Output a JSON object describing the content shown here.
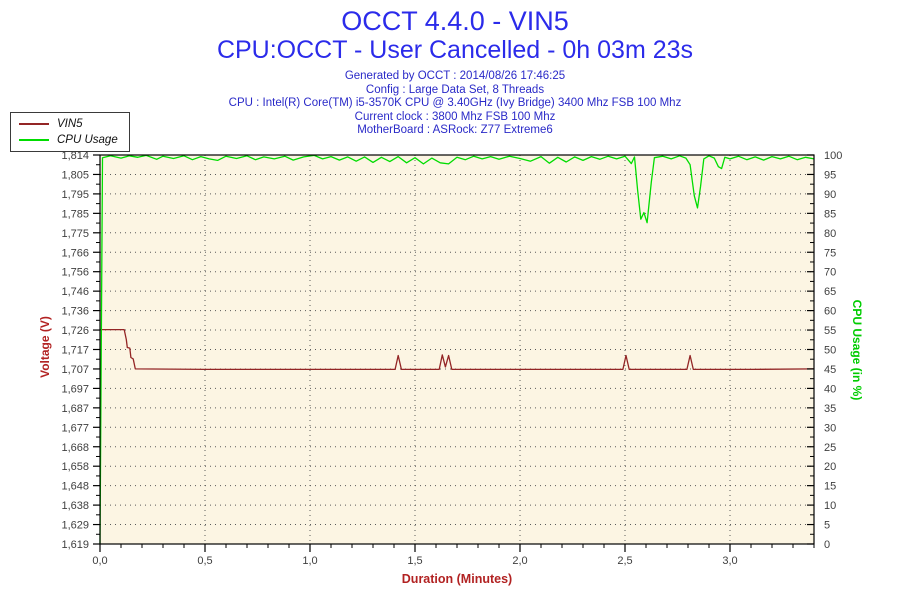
{
  "header": {
    "title_line1": "OCCT 4.4.0 - VIN5",
    "title_line2": "CPU:OCCT - User Cancelled - 0h 03m 23s",
    "info_lines": [
      "Generated by OCCT : 2014/08/26 17:46:25",
      "Config : Large Data Set, 8 Threads",
      "CPU : Intel(R) Core(TM) i5-3570K CPU @ 3.40GHz (Ivy Bridge) 3400 Mhz FSB 100 Mhz",
      "Current clock : 3800 Mhz FSB 100 Mhz",
      "MotherBoard : ASRock: Z77 Extreme6"
    ]
  },
  "legend": {
    "items": [
      {
        "label": "VIN5",
        "color": "#932525"
      },
      {
        "label": "CPU Usage",
        "color": "#00dd00"
      }
    ]
  },
  "colors": {
    "title_blue": "#2b2bea",
    "info_blue": "#2a2ac8",
    "plot_bg": "#fcf5e3",
    "grid": "#5a5a5a",
    "axis": "#000000",
    "tick_text": "#3f3f3f",
    "voltage_red": "#b22222",
    "cpu_green": "#00cc00",
    "vin5_line": "#932525",
    "cpu_line": "#00dd00"
  },
  "chart_data": {
    "type": "line",
    "title": "OCCT 4.4.0 - VIN5",
    "x_label": "Duration (Minutes)",
    "y_left_label": "Voltage (V)",
    "y_right_label": "CPU Usage (in %)",
    "x_range": [
      0,
      3.4
    ],
    "y_left_range": [
      1.619,
      1.814
    ],
    "y_right_range": [
      0,
      100
    ],
    "grid": "dotted",
    "legend_position": "top-left",
    "y_left_ticks": [
      "1,814",
      "1,805",
      "1,795",
      "1,785",
      "1,775",
      "1,766",
      "1,756",
      "1,746",
      "1,736",
      "1,726",
      "1,717",
      "1,707",
      "1,697",
      "1,687",
      "1,677",
      "1,668",
      "1,658",
      "1,648",
      "1,638",
      "1,629",
      "1,619"
    ],
    "y_right_ticks": [
      "100",
      "95",
      "90",
      "85",
      "80",
      "75",
      "70",
      "65",
      "60",
      "55",
      "50",
      "45",
      "40",
      "35",
      "30",
      "25",
      "20",
      "15",
      "10",
      "5",
      "0"
    ],
    "x_major_ticks": [
      {
        "v": 0.0,
        "label": "0,0"
      },
      {
        "v": 0.5,
        "label": "0,5"
      },
      {
        "v": 1.0,
        "label": "1,0"
      },
      {
        "v": 1.5,
        "label": "1,5"
      },
      {
        "v": 2.0,
        "label": "2,0"
      },
      {
        "v": 2.5,
        "label": "2,5"
      },
      {
        "v": 3.0,
        "label": "3,0"
      }
    ],
    "x_minor_step": 0.1,
    "series": [
      {
        "name": "VIN5",
        "axis": "left",
        "color": "#932525",
        "points": [
          [
            0,
            1.7265
          ],
          [
            0.115,
            1.7265
          ],
          [
            0.125,
            1.7215
          ],
          [
            0.13,
            1.7175
          ],
          [
            0.142,
            1.7172
          ],
          [
            0.147,
            1.7125
          ],
          [
            0.158,
            1.7118
          ],
          [
            0.168,
            1.7068
          ],
          [
            0.5,
            1.7065
          ],
          [
            1.0,
            1.7065
          ],
          [
            1.405,
            1.7065
          ],
          [
            1.42,
            1.7135
          ],
          [
            1.435,
            1.7065
          ],
          [
            1.615,
            1.7065
          ],
          [
            1.63,
            1.7138
          ],
          [
            1.645,
            1.7078
          ],
          [
            1.66,
            1.7135
          ],
          [
            1.675,
            1.7065
          ],
          [
            2.0,
            1.7065
          ],
          [
            2.49,
            1.7065
          ],
          [
            2.505,
            1.7135
          ],
          [
            2.52,
            1.7065
          ],
          [
            2.795,
            1.7065
          ],
          [
            2.81,
            1.7135
          ],
          [
            2.825,
            1.7065
          ],
          [
            3.1,
            1.7065
          ],
          [
            3.4,
            1.7068
          ]
        ]
      },
      {
        "name": "CPU Usage",
        "axis": "right",
        "color": "#00dd00",
        "points": [
          [
            0,
            0
          ],
          [
            0.012,
            99.3
          ],
          [
            0.05,
            99.8
          ],
          [
            0.1,
            99.2
          ],
          [
            0.14,
            99.8
          ],
          [
            0.18,
            99.4
          ],
          [
            0.22,
            99.9
          ],
          [
            0.27,
            98.9
          ],
          [
            0.3,
            99.7
          ],
          [
            0.35,
            99.1
          ],
          [
            0.4,
            99.8
          ],
          [
            0.44,
            98.8
          ],
          [
            0.48,
            99.6
          ],
          [
            0.52,
            99.0
          ],
          [
            0.56,
            98.6
          ],
          [
            0.6,
            99.7
          ],
          [
            0.65,
            99.1
          ],
          [
            0.7,
            99.8
          ],
          [
            0.74,
            98.8
          ],
          [
            0.78,
            99.5
          ],
          [
            0.83,
            99.0
          ],
          [
            0.88,
            99.7
          ],
          [
            0.92,
            98.7
          ],
          [
            0.97,
            99.5
          ],
          [
            1.02,
            99.9
          ],
          [
            1.06,
            99.0
          ],
          [
            1.1,
            99.6
          ],
          [
            1.14,
            98.7
          ],
          [
            1.18,
            99.5
          ],
          [
            1.22,
            98.4
          ],
          [
            1.26,
            99.5
          ],
          [
            1.3,
            98.1
          ],
          [
            1.34,
            99.4
          ],
          [
            1.38,
            98.3
          ],
          [
            1.42,
            99.6
          ],
          [
            1.46,
            98.0
          ],
          [
            1.5,
            99.3
          ],
          [
            1.54,
            97.7
          ],
          [
            1.58,
            99.2
          ],
          [
            1.62,
            98.0
          ],
          [
            1.66,
            97.7
          ],
          [
            1.7,
            99.4
          ],
          [
            1.74,
            98.8
          ],
          [
            1.78,
            99.7
          ],
          [
            1.82,
            99.0
          ],
          [
            1.86,
            99.6
          ],
          [
            1.9,
            98.9
          ],
          [
            1.95,
            99.7
          ],
          [
            2.0,
            99.1
          ],
          [
            2.05,
            98.4
          ],
          [
            2.1,
            99.6
          ],
          [
            2.14,
            97.9
          ],
          [
            2.18,
            99.4
          ],
          [
            2.22,
            98.2
          ],
          [
            2.26,
            99.5
          ],
          [
            2.3,
            98.6
          ],
          [
            2.34,
            99.6
          ],
          [
            2.38,
            98.9
          ],
          [
            2.42,
            99.7
          ],
          [
            2.46,
            99.0
          ],
          [
            2.5,
            99.7
          ],
          [
            2.53,
            97.8
          ],
          [
            2.545,
            99.5
          ],
          [
            2.56,
            91.0
          ],
          [
            2.575,
            83.5
          ],
          [
            2.59,
            85.2
          ],
          [
            2.605,
            82.6
          ],
          [
            2.625,
            93.0
          ],
          [
            2.64,
            99.3
          ],
          [
            2.68,
            99.7
          ],
          [
            2.72,
            99.0
          ],
          [
            2.76,
            99.8
          ],
          [
            2.79,
            99.2
          ],
          [
            2.81,
            97.5
          ],
          [
            2.83,
            89.5
          ],
          [
            2.845,
            86.4
          ],
          [
            2.86,
            92.0
          ],
          [
            2.875,
            99.0
          ],
          [
            2.9,
            99.8
          ],
          [
            2.925,
            99.2
          ],
          [
            2.945,
            97.0
          ],
          [
            2.96,
            96.5
          ],
          [
            2.975,
            99.4
          ],
          [
            3.0,
            99.0
          ],
          [
            3.04,
            99.7
          ],
          [
            3.08,
            98.8
          ],
          [
            3.12,
            99.5
          ],
          [
            3.16,
            98.7
          ],
          [
            3.2,
            99.6
          ],
          [
            3.24,
            99.0
          ],
          [
            3.28,
            99.7
          ],
          [
            3.32,
            98.8
          ],
          [
            3.36,
            99.4
          ],
          [
            3.4,
            99.0
          ]
        ]
      }
    ]
  }
}
